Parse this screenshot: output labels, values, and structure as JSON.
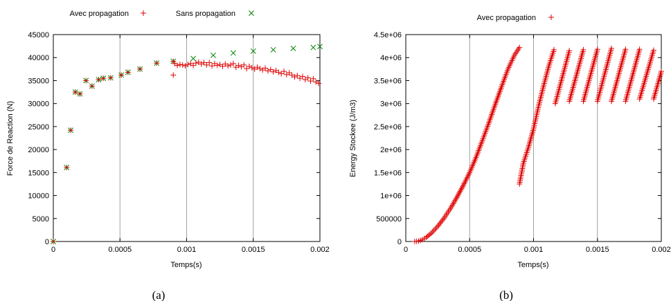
{
  "chart_data": [
    {
      "type": "scatter",
      "caption": "(a)",
      "xlabel": "Temps(s)",
      "ylabel": "Force de Reaction (N)",
      "xlim": [
        0,
        0.002
      ],
      "ylim": [
        0,
        45000
      ],
      "xticks": [
        0,
        0.0005,
        0.001,
        0.0015,
        0.002
      ],
      "xtick_labels": [
        "0",
        "0.0005",
        "0.001",
        "0.0015",
        "0.002"
      ],
      "yticks": [
        0,
        5000,
        10000,
        15000,
        20000,
        25000,
        30000,
        35000,
        40000,
        45000
      ],
      "ytick_labels": [
        "0",
        "5000",
        "10000",
        "15000",
        "20000",
        "25000",
        "30000",
        "35000",
        "40000",
        "45000"
      ],
      "grid": "vertical",
      "legend_position": "top",
      "series": [
        {
          "name": "Avec propagation",
          "marker": "plus",
          "color": "#e00000",
          "x": [
            0,
            0.0001,
            0.00013,
            0.000165,
            0.0002,
            0.000245,
            0.00029,
            0.00034,
            0.000375,
            0.00043,
            0.00051,
            0.00056,
            0.00065,
            0.000775,
            0.0009,
            0.0009,
            0.00091,
            0.00093,
            0.00095,
            0.00097,
            0.00099,
            0.00101,
            0.00103,
            0.00105,
            0.00107,
            0.00109,
            0.00111,
            0.00113,
            0.00115,
            0.00117,
            0.00119,
            0.00121,
            0.00123,
            0.00125,
            0.00127,
            0.00129,
            0.00131,
            0.00133,
            0.00135,
            0.00137,
            0.00139,
            0.00141,
            0.00143,
            0.00145,
            0.00147,
            0.00149,
            0.00151,
            0.00153,
            0.00155,
            0.00157,
            0.00159,
            0.00161,
            0.00163,
            0.00165,
            0.00167,
            0.00169,
            0.00171,
            0.00173,
            0.00175,
            0.00177,
            0.00179,
            0.00181,
            0.00183,
            0.00185,
            0.00187,
            0.00189,
            0.00191,
            0.00193,
            0.00195,
            0.00197,
            0.00199
          ],
          "y": [
            0,
            16100,
            24200,
            32500,
            32100,
            35000,
            33800,
            35200,
            35500,
            35600,
            36200,
            36800,
            37500,
            38800,
            39200,
            36200,
            38700,
            38300,
            38500,
            38400,
            38200,
            38500,
            38700,
            38300,
            38800,
            39000,
            38600,
            38900,
            38400,
            38900,
            38200,
            38700,
            38300,
            38500,
            38100,
            38600,
            38200,
            38400,
            38700,
            37900,
            38300,
            38000,
            38400,
            37600,
            38100,
            37800,
            37500,
            37900,
            37600,
            37300,
            37700,
            37100,
            37400,
            36900,
            37200,
            36800,
            36500,
            37000,
            36300,
            36700,
            36200,
            35800,
            36100,
            35500,
            35900,
            35200,
            35600,
            34900,
            35400,
            34700,
            34400
          ]
        },
        {
          "name": "Sans propagation",
          "marker": "x",
          "color": "#008000",
          "x": [
            0,
            0.0001,
            0.00013,
            0.000165,
            0.0002,
            0.000245,
            0.00029,
            0.00034,
            0.000375,
            0.00043,
            0.00051,
            0.00056,
            0.00065,
            0.000775,
            0.0009,
            0.00105,
            0.0012,
            0.00135,
            0.0015,
            0.00165,
            0.0018,
            0.00195,
            0.002
          ],
          "y": [
            0,
            16100,
            24200,
            32500,
            32100,
            35000,
            33800,
            35200,
            35500,
            35600,
            36200,
            36800,
            37500,
            38800,
            39200,
            39800,
            40500,
            41000,
            41400,
            41700,
            42000,
            42200,
            42400
          ]
        }
      ]
    },
    {
      "type": "scatter",
      "caption": "(b)",
      "xlabel": "Temps(s)",
      "ylabel": "Energy Stockee (J/m3)",
      "xlim": [
        0,
        0.002
      ],
      "ylim": [
        0,
        4500000
      ],
      "xticks": [
        0,
        0.0005,
        0.001,
        0.0015,
        0.002
      ],
      "xtick_labels": [
        "0",
        "0.0005",
        "0.001",
        "0.0015",
        "0.002"
      ],
      "yticks": [
        0,
        500000,
        1000000,
        1500000,
        2000000,
        2500000,
        3000000,
        3500000,
        4000000,
        4500000
      ],
      "ytick_labels": [
        "0",
        "500000",
        "1e+06",
        "1.5e+06",
        "2e+06",
        "2.5e+06",
        "3e+06",
        "3.5e+06",
        "4e+06",
        "4.5e+06"
      ],
      "grid": "vertical",
      "legend_position": "top",
      "series": [
        {
          "name": "Avec propagation",
          "marker": "plus",
          "color": "#e00000",
          "segments": [
            {
              "x": [
                7e-05,
                0.0001,
                0.00013,
                0.00016,
                0.0002,
                0.00025,
                0.0003,
                0.00035,
                0.0004,
                0.00045,
                0.0005,
                0.00055,
                0.0006,
                0.00065,
                0.0007,
                0.00075,
                0.0008,
                0.00085,
                0.00089
              ],
              "y": [
                0,
                10000,
                40000,
                90000,
                180000,
                330000,
                510000,
                720000,
                960000,
                1220000,
                1500000,
                1830000,
                2200000,
                2580000,
                2980000,
                3370000,
                3750000,
                4050000,
                4220000
              ]
            },
            {
              "x": [
                0.00089,
                0.00092,
                0.00096,
                0.001,
                0.00104,
                0.00108,
                0.00112,
                0.00116
              ],
              "y": [
                1250000,
                1700000,
                2050000,
                2450000,
                2950000,
                3400000,
                3820000,
                4170000
              ]
            },
            {
              "x": [
                0.00117,
                0.00128
              ],
              "y": [
                3000000,
                4150000
              ]
            },
            {
              "x": [
                0.00128,
                0.00139
              ],
              "y": [
                3050000,
                4170000
              ]
            },
            {
              "x": [
                0.00139,
                0.0015
              ],
              "y": [
                3050000,
                4180000
              ]
            },
            {
              "x": [
                0.0015,
                0.00161
              ],
              "y": [
                3050000,
                4200000
              ]
            },
            {
              "x": [
                0.00161,
                0.00172
              ],
              "y": [
                3050000,
                4180000
              ]
            },
            {
              "x": [
                0.00172,
                0.00183
              ],
              "y": [
                3050000,
                4180000
              ]
            },
            {
              "x": [
                0.00183,
                0.00194
              ],
              "y": [
                3100000,
                4160000
              ]
            },
            {
              "x": [
                0.00194,
                0.002
              ],
              "y": [
                3100000,
                3700000
              ]
            }
          ]
        }
      ]
    }
  ]
}
